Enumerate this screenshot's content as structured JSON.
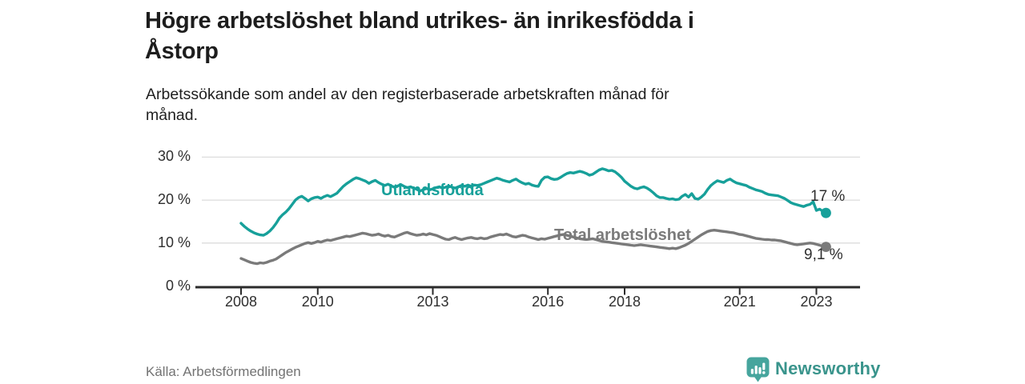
{
  "header": {
    "title_lines": [
      "Högre arbetslöshet bland utrikes- än inrikesfödda i",
      "Åstorp"
    ],
    "subtitle_lines": [
      "Arbetssökande som andel av den registerbaserade arbetskraften månad för",
      "månad."
    ]
  },
  "footer": {
    "source": "Källa: Arbetsförmedlingen",
    "brand": "Newsworthy",
    "brand_icon": "bar-chart-speech-bubble"
  },
  "colors": {
    "foreign_line": "#17a09a",
    "total_line": "#7a7a7a",
    "axis": "#2b2b2b",
    "gridline": "#dcdcdc",
    "text_dark": "#1d1d1d",
    "brand_teal": "#3a948c",
    "brand_icon_teal": "#46a59d"
  },
  "chart_data": {
    "type": "line",
    "title": "Högre arbetslöshet bland utrikes- än inrikesfödda i Åstorp",
    "subtitle": "Arbetssökande som andel av den registerbaserade arbetskraften månad för månad.",
    "unit": "%",
    "x_unit": "month",
    "x_start": "2008-01",
    "x_end": "2023-04",
    "x_tick_years": [
      2008,
      2010,
      2013,
      2016,
      2018,
      2021,
      2023
    ],
    "y_ticks": [
      {
        "value": 30,
        "label": "30 %"
      },
      {
        "value": 20,
        "label": "20 %"
      },
      {
        "value": 10,
        "label": "10 %"
      },
      {
        "value": 0,
        "label": "0 %"
      }
    ],
    "ylim": [
      0,
      30
    ],
    "grid": "horizontal",
    "legend_position": "inline-labels",
    "series": [
      {
        "name": "Utlandsfödda",
        "color": "#17a09a",
        "end_label": "17 %",
        "end_value": 17,
        "values": [
          14.6,
          13.9,
          13.3,
          12.8,
          12.4,
          12.1,
          11.9,
          11.8,
          12.2,
          12.8,
          13.6,
          14.6,
          15.8,
          16.6,
          17.2,
          18.0,
          19.0,
          20.0,
          20.6,
          20.9,
          20.4,
          19.8,
          20.3,
          20.6,
          20.7,
          20.4,
          20.8,
          21.1,
          20.8,
          21.2,
          21.6,
          22.4,
          23.2,
          23.8,
          24.3,
          24.8,
          25.2,
          25.0,
          24.7,
          24.4,
          23.9,
          24.3,
          24.6,
          24.1,
          23.7,
          23.4,
          23.7,
          23.3,
          23.0,
          23.3,
          23.6,
          23.2,
          22.9,
          23.1,
          22.8,
          22.5,
          22.1,
          22.4,
          22.7,
          22.4,
          22.6,
          22.9,
          23.1,
          22.8,
          23.0,
          23.3,
          23.0,
          22.8,
          23.1,
          23.4,
          23.2,
          23.5,
          23.2,
          23.5,
          23.4,
          23.6,
          23.9,
          24.2,
          24.5,
          24.8,
          25.1,
          24.9,
          24.6,
          24.4,
          24.2,
          24.6,
          24.9,
          24.4,
          24.0,
          23.7,
          23.9,
          23.5,
          23.3,
          23.2,
          24.6,
          25.3,
          25.4,
          25.0,
          24.8,
          24.9,
          25.3,
          25.8,
          26.2,
          26.4,
          26.3,
          26.5,
          26.7,
          26.5,
          26.2,
          25.8,
          26.0,
          26.5,
          27.0,
          27.3,
          27.1,
          26.8,
          26.9,
          26.6,
          26.0,
          25.3,
          24.4,
          23.8,
          23.2,
          22.8,
          22.6,
          22.9,
          23.1,
          22.8,
          22.3,
          21.7,
          21.0,
          20.6,
          20.6,
          20.4,
          20.2,
          20.3,
          20.1,
          20.2,
          20.9,
          21.3,
          20.7,
          21.5,
          20.4,
          20.2,
          20.7,
          21.4,
          22.5,
          23.4,
          24.0,
          24.5,
          24.3,
          24.1,
          24.6,
          24.9,
          24.4,
          24.0,
          23.8,
          23.6,
          23.4,
          23.0,
          22.7,
          22.4,
          22.2,
          22.0,
          21.6,
          21.3,
          21.2,
          21.1,
          21.0,
          20.7,
          20.4,
          19.9,
          19.4,
          19.1,
          18.9,
          18.7,
          18.5,
          18.8,
          19.0,
          19.6,
          17.6,
          17.9,
          17.4,
          17.0
        ]
      },
      {
        "name": "Total arbetslöshet",
        "color": "#7a7a7a",
        "end_label": "9,1 %",
        "end_value": 9.1,
        "values": [
          6.4,
          6.1,
          5.8,
          5.5,
          5.3,
          5.2,
          5.4,
          5.3,
          5.5,
          5.8,
          6.0,
          6.3,
          6.8,
          7.3,
          7.8,
          8.2,
          8.6,
          9.0,
          9.3,
          9.6,
          9.9,
          10.1,
          9.9,
          10.1,
          10.4,
          10.2,
          10.5,
          10.7,
          10.6,
          10.8,
          11.0,
          11.2,
          11.4,
          11.6,
          11.5,
          11.7,
          11.9,
          12.1,
          12.3,
          12.2,
          12.0,
          11.8,
          11.9,
          12.1,
          11.8,
          11.6,
          11.8,
          11.5,
          11.4,
          11.7,
          12.0,
          12.3,
          12.5,
          12.2,
          12.0,
          11.8,
          11.9,
          12.1,
          11.9,
          12.2,
          12.0,
          11.8,
          11.5,
          11.2,
          10.9,
          10.8,
          11.1,
          11.3,
          11.0,
          10.8,
          11.0,
          11.2,
          11.3,
          11.1,
          11.0,
          11.2,
          11.0,
          11.1,
          11.4,
          11.6,
          11.8,
          12.0,
          11.9,
          12.1,
          11.8,
          11.5,
          11.4,
          11.6,
          11.8,
          11.7,
          11.4,
          11.2,
          11.0,
          10.8,
          11.0,
          10.9,
          11.1,
          11.3,
          11.5,
          11.7,
          11.9,
          12.0,
          11.8,
          11.6,
          11.4,
          11.2,
          11.0,
          10.9,
          10.8,
          10.9,
          11.0,
          10.8,
          10.6,
          10.4,
          10.3,
          10.2,
          10.1,
          10.0,
          9.9,
          9.8,
          9.7,
          9.6,
          9.5,
          9.4,
          9.5,
          9.6,
          9.5,
          9.4,
          9.3,
          9.2,
          9.1,
          9.0,
          8.9,
          8.8,
          8.7,
          8.8,
          8.7,
          8.9,
          9.2,
          9.5,
          9.9,
          10.4,
          10.9,
          11.4,
          11.9,
          12.3,
          12.7,
          12.9,
          13.0,
          12.9,
          12.8,
          12.7,
          12.6,
          12.5,
          12.4,
          12.2,
          12.0,
          11.9,
          11.7,
          11.5,
          11.3,
          11.1,
          11.0,
          10.9,
          10.8,
          10.8,
          10.7,
          10.7,
          10.6,
          10.5,
          10.3,
          10.1,
          9.9,
          9.7,
          9.6,
          9.7,
          9.8,
          9.9,
          10.0,
          9.9,
          9.7,
          9.5,
          9.3,
          9.1
        ]
      }
    ]
  }
}
